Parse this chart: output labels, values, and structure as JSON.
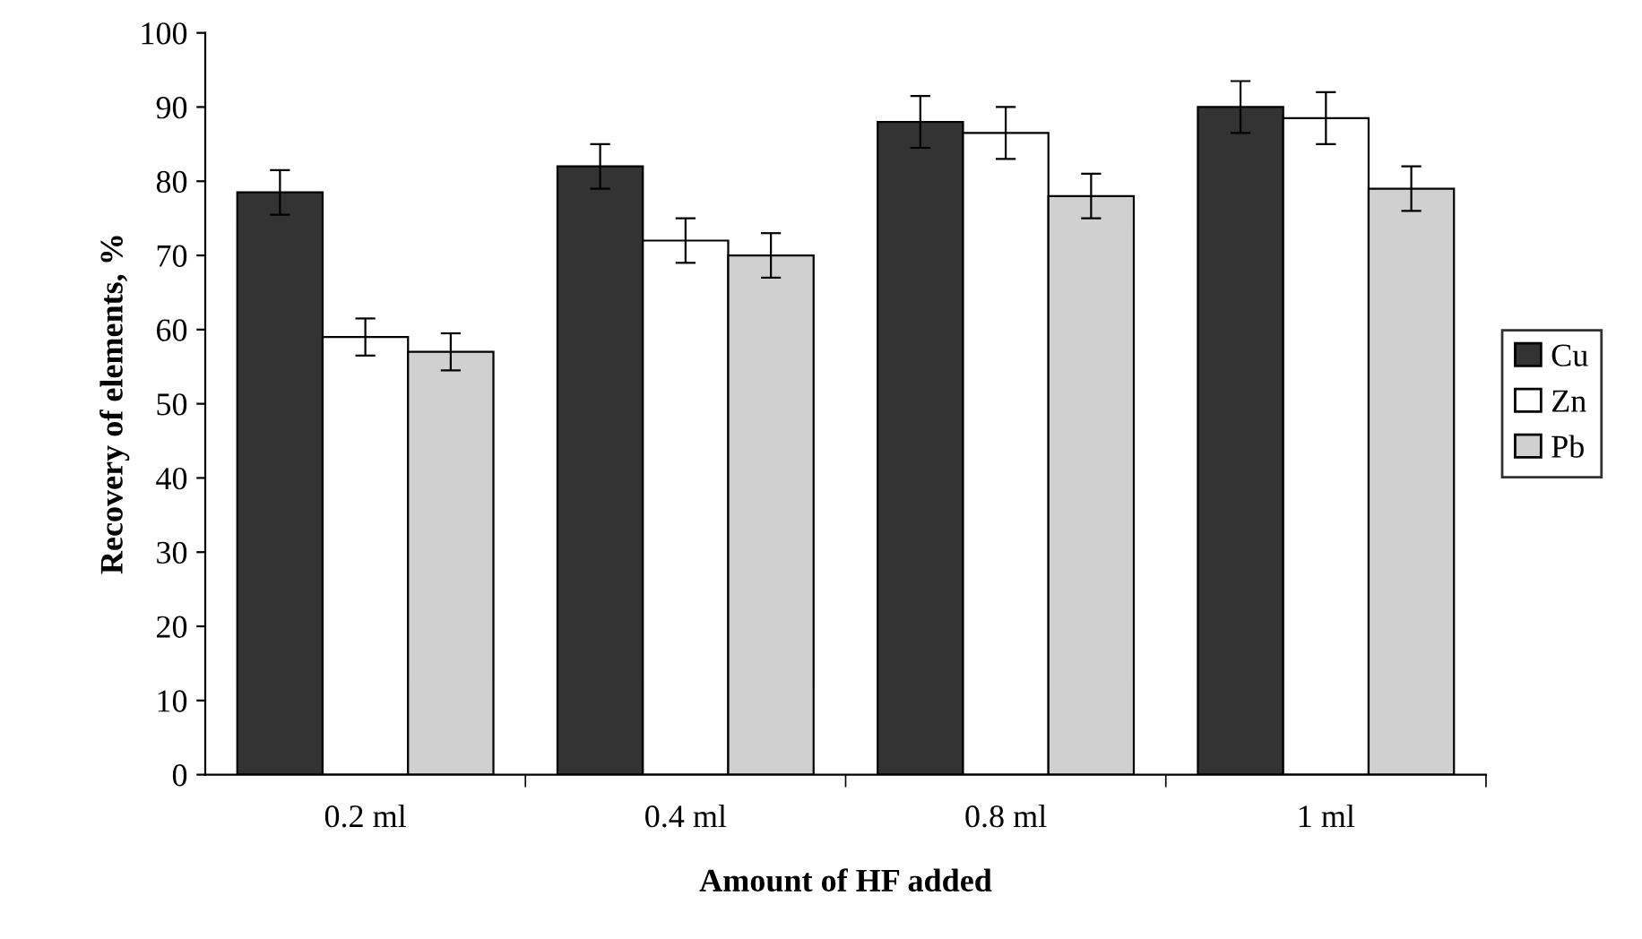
{
  "chart_data": {
    "type": "bar",
    "xlabel": "Amount of HF added",
    "ylabel": "Recovery of elements, %",
    "categories": [
      "0.2 ml",
      "0.4 ml",
      "0.8 ml",
      "1 ml"
    ],
    "series": [
      {
        "name": "Cu",
        "color": "#333333",
        "values": [
          78.5,
          82,
          88,
          90
        ],
        "errors": [
          3,
          3,
          3.5,
          3.5
        ]
      },
      {
        "name": "Zn",
        "color": "#ffffff",
        "values": [
          59,
          72,
          86.5,
          88.5
        ],
        "errors": [
          2.5,
          3,
          3.5,
          3.5
        ]
      },
      {
        "name": "Pb",
        "color": "#d0d0d0",
        "values": [
          57,
          70,
          78,
          79
        ],
        "errors": [
          2.5,
          3,
          3,
          3
        ]
      }
    ],
    "ylim": [
      0,
      100
    ],
    "yticks": [
      0,
      10,
      20,
      30,
      40,
      50,
      60,
      70,
      80,
      90,
      100
    ],
    "grid": false,
    "legend": "right"
  }
}
